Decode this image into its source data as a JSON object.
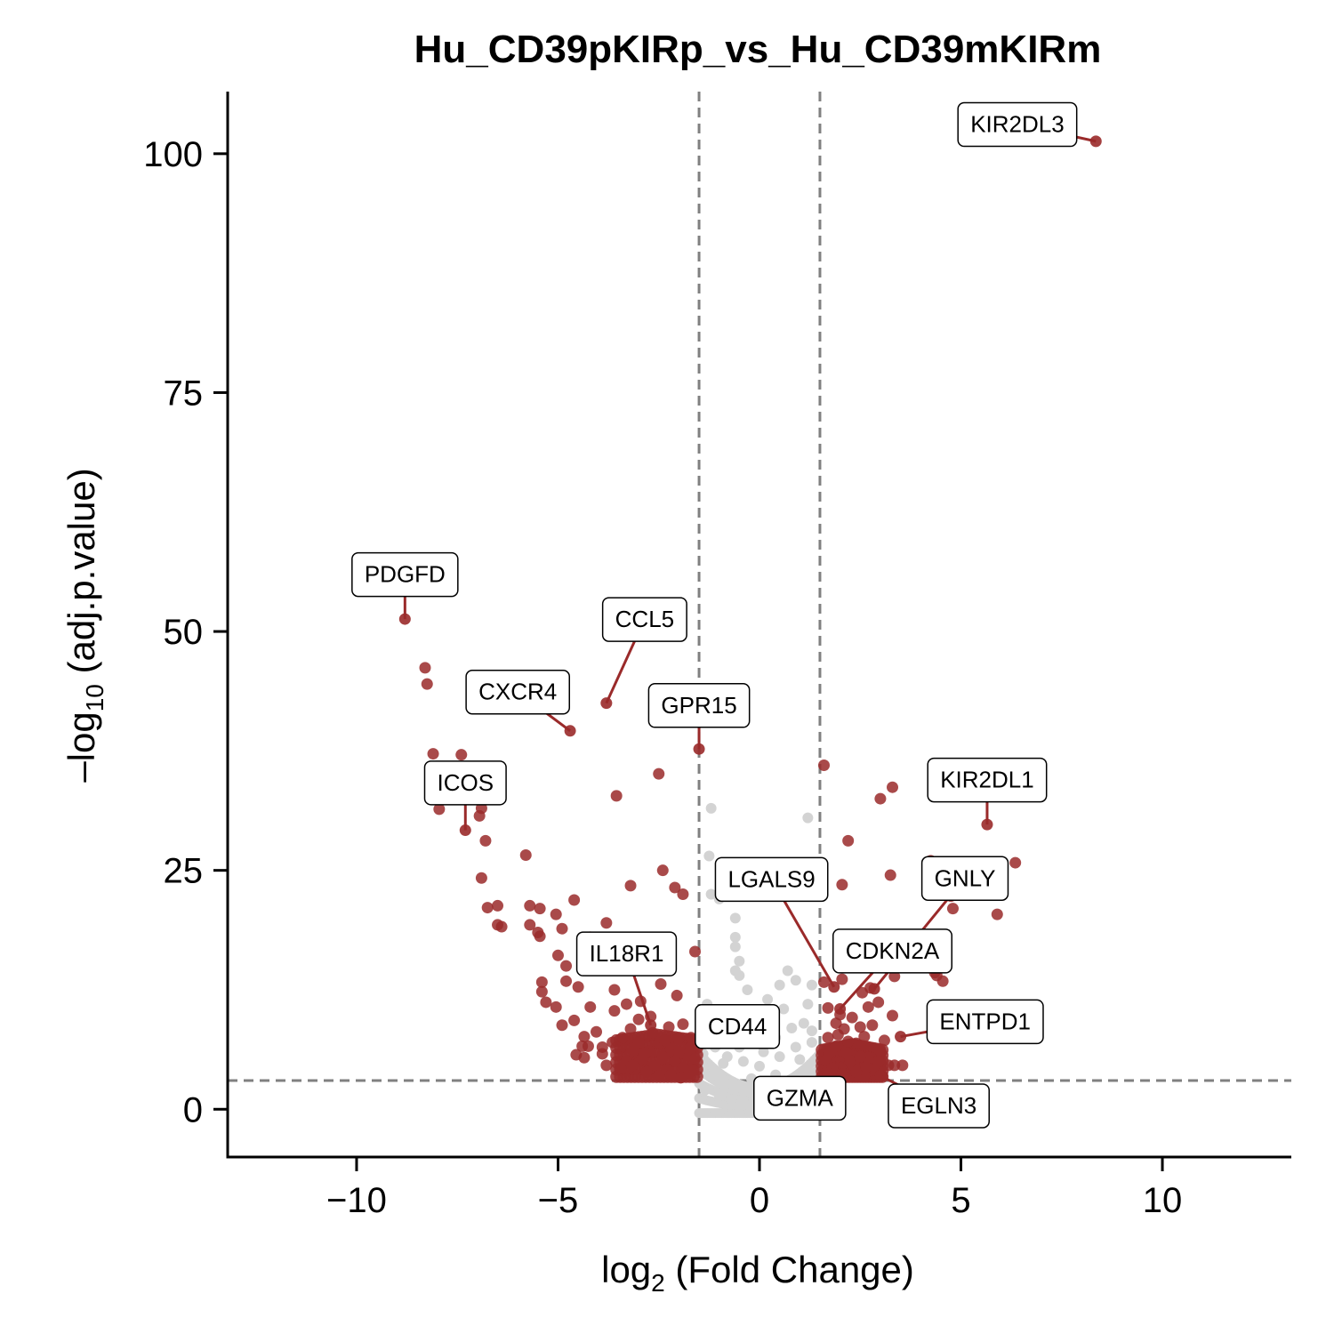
{
  "chart_data": {
    "type": "scatter",
    "title": "Hu_CD39pKIRp_vs_Hu_CD39mKIRm",
    "xlabel": {
      "base": "log",
      "sub": "2",
      "rest": " (Fold Change)"
    },
    "ylabel": {
      "base": "–log",
      "sub": "10",
      "rest": " (adj.p.value)"
    },
    "xlim": [
      -13.2,
      13.2
    ],
    "ylim": [
      -5,
      106.5
    ],
    "xticks": [
      -10,
      -5,
      0,
      5,
      10
    ],
    "xtick_labels": [
      "−10",
      "−5",
      "0",
      "5",
      "10"
    ],
    "yticks": [
      0,
      25,
      50,
      75,
      100
    ],
    "ytick_labels": [
      "0",
      "25",
      "50",
      "75",
      "100"
    ],
    "thresholds": {
      "fc": [
        -1.5,
        1.5
      ],
      "padj": 3
    },
    "grid": false,
    "legend": "none",
    "colors": {
      "significant": "#9A2A2A",
      "nonsignificant": "#D3D3D3",
      "threshold_line": "#808080"
    },
    "labeled_genes": [
      {
        "gene": "KIR2DL3",
        "x": 8.35,
        "y": 101.3,
        "lx": 6.4,
        "ly": 103.1
      },
      {
        "gene": "PDGFD",
        "x": -8.8,
        "y": 51.3,
        "lx": -8.8,
        "ly": 56.0
      },
      {
        "gene": "CCL5",
        "x": -3.8,
        "y": 42.5,
        "lx": -2.85,
        "ly": 51.3
      },
      {
        "gene": "CXCR4",
        "x": -4.7,
        "y": 39.6,
        "lx": -6.0,
        "ly": 43.7
      },
      {
        "gene": "GPR15",
        "x": -1.5,
        "y": 37.7,
        "lx": -1.5,
        "ly": 42.3
      },
      {
        "gene": "ICOS",
        "x": -7.3,
        "y": 29.2,
        "lx": -7.3,
        "ly": 34.2
      },
      {
        "gene": "KIR2DL1",
        "x": 5.65,
        "y": 29.8,
        "lx": 5.65,
        "ly": 34.5
      },
      {
        "gene": "LGALS9",
        "x": 1.85,
        "y": 12.8,
        "lx": 0.3,
        "ly": 24.1
      },
      {
        "gene": "GNLY",
        "x": 2.85,
        "y": 12.6,
        "lx": 5.1,
        "ly": 24.2
      },
      {
        "gene": "CDKN2A",
        "x": 2.0,
        "y": 10.5,
        "lx": 3.3,
        "ly": 16.6
      },
      {
        "gene": "IL18R1",
        "x": -2.7,
        "y": 8.8,
        "lx": -3.3,
        "ly": 16.3
      },
      {
        "gene": "ENTPD1",
        "x": 3.5,
        "y": 7.6,
        "lx": 5.6,
        "ly": 9.2
      },
      {
        "gene": "CD44",
        "x": -1.6,
        "y": 7.1,
        "lx": -0.55,
        "ly": 8.7
      },
      {
        "gene": "GZMA",
        "x": 1.7,
        "y": 3.5,
        "lx": 1.0,
        "ly": 1.2
      },
      {
        "gene": "EGLN3",
        "x": 3.0,
        "y": 3.5,
        "lx": 4.45,
        "ly": 0.4
      }
    ],
    "significant_points": [
      [
        -8.3,
        46.2
      ],
      [
        -8.25,
        44.5
      ],
      [
        -8.1,
        37.2
      ],
      [
        -7.4,
        37.1
      ],
      [
        -7.55,
        34.4
      ],
      [
        -7.95,
        31.4
      ],
      [
        -6.9,
        31.5
      ],
      [
        -6.95,
        30.7
      ],
      [
        -6.8,
        28.1
      ],
      [
        -5.8,
        26.6
      ],
      [
        -6.9,
        24.2
      ],
      [
        -6.75,
        21.1
      ],
      [
        -6.5,
        21.3
      ],
      [
        -6.5,
        19.3
      ],
      [
        -6.4,
        19.1
      ],
      [
        -5.7,
        21.3
      ],
      [
        -5.45,
        21.0
      ],
      [
        -5.05,
        20.4
      ],
      [
        -5.7,
        19.3
      ],
      [
        -4.9,
        18.9
      ],
      [
        -5.5,
        18.5
      ],
      [
        -5.45,
        18.1
      ],
      [
        -4.6,
        21.9
      ],
      [
        -5.0,
        16.1
      ],
      [
        -4.8,
        15.0
      ],
      [
        -4.2,
        18.0
      ],
      [
        -3.8,
        19.5
      ],
      [
        -4.1,
        17.0
      ],
      [
        -3.45,
        15.3
      ],
      [
        -3.6,
        10.3
      ],
      [
        -5.4,
        13.3
      ],
      [
        -5.4,
        12.3
      ],
      [
        -4.8,
        13.4
      ],
      [
        -3.2,
        23.4
      ],
      [
        -2.5,
        35.1
      ],
      [
        -3.55,
        32.8
      ],
      [
        -2.4,
        25.0
      ],
      [
        -1.9,
        22.5
      ],
      [
        -2.1,
        23.2
      ],
      [
        -1.6,
        16.5
      ],
      [
        -4.5,
        12.8
      ],
      [
        -4.2,
        10.7
      ],
      [
        -4.6,
        9.3
      ],
      [
        -4.35,
        7.6
      ],
      [
        -4.25,
        6.6
      ],
      [
        -4.35,
        5.4
      ],
      [
        -4.55,
        5.7
      ],
      [
        -4.4,
        6.6
      ],
      [
        -5.3,
        11.2
      ],
      [
        -5.05,
        10.7
      ],
      [
        -4.9,
        8.8
      ],
      [
        -4.05,
        8.1
      ],
      [
        -3.9,
        5.8
      ],
      [
        -3.8,
        4.6
      ],
      [
        -3.65,
        7.0
      ],
      [
        -3.4,
        7.5
      ],
      [
        -3.3,
        5.0
      ],
      [
        -3.1,
        6.2
      ],
      [
        -3.2,
        8.4
      ],
      [
        -3.0,
        7.0
      ],
      [
        -2.9,
        5.3
      ],
      [
        -2.75,
        6.1
      ],
      [
        -2.6,
        4.5
      ],
      [
        -2.5,
        6.9
      ],
      [
        -2.4,
        5.5
      ],
      [
        -2.3,
        4.1
      ],
      [
        -2.2,
        6.3
      ],
      [
        -2.1,
        5.0
      ],
      [
        -2.0,
        7.4
      ],
      [
        -1.9,
        4.3
      ],
      [
        -1.8,
        5.7
      ],
      [
        -1.7,
        6.5
      ],
      [
        -1.65,
        4.1
      ],
      [
        -1.6,
        5.3
      ],
      [
        -2.05,
        11.9
      ],
      [
        -2.45,
        13.1
      ],
      [
        -2.7,
        9.7
      ],
      [
        -2.95,
        11.3
      ],
      [
        -2.25,
        8.6
      ],
      [
        -1.9,
        8.9
      ],
      [
        -3.6,
        12.5
      ],
      [
        -3.3,
        11.0
      ],
      [
        -3.0,
        9.4
      ],
      [
        -2.8,
        3.9
      ],
      [
        -2.5,
        3.5
      ],
      [
        -2.2,
        3.6
      ],
      [
        -1.95,
        3.3
      ],
      [
        -1.75,
        3.8
      ],
      [
        -3.45,
        4.3
      ],
      [
        -3.9,
        6.5
      ],
      [
        -2.65,
        8.0
      ],
      [
        -2.35,
        7.2
      ],
      [
        -2.0,
        6.0
      ],
      [
        -1.7,
        7.5
      ],
      [
        -2.85,
        5.9
      ],
      [
        -3.15,
        4.6
      ],
      [
        1.6,
        36.0
      ],
      [
        2.2,
        28.1
      ],
      [
        3.3,
        33.7
      ],
      [
        3.0,
        32.5
      ],
      [
        2.05,
        23.5
      ],
      [
        3.25,
        24.5
      ],
      [
        4.25,
        26.0
      ],
      [
        4.75,
        22.3
      ],
      [
        4.8,
        21.0
      ],
      [
        5.9,
        20.4
      ],
      [
        6.35,
        25.8
      ],
      [
        3.35,
        13.9
      ],
      [
        4.4,
        14.0
      ],
      [
        4.55,
        13.4
      ],
      [
        4.35,
        14.3
      ],
      [
        2.75,
        12.7
      ],
      [
        2.55,
        12.2
      ],
      [
        2.7,
        10.7
      ],
      [
        2.95,
        11.2
      ],
      [
        1.6,
        13.3
      ],
      [
        2.05,
        13.6
      ],
      [
        3.3,
        9.8
      ],
      [
        1.7,
        10.6
      ],
      [
        2.0,
        9.9
      ],
      [
        1.9,
        9.0
      ],
      [
        2.1,
        8.4
      ],
      [
        2.3,
        9.6
      ],
      [
        2.5,
        8.6
      ],
      [
        2.6,
        7.6
      ],
      [
        2.8,
        8.8
      ],
      [
        1.7,
        7.5
      ],
      [
        1.9,
        6.6
      ],
      [
        2.15,
        5.9
      ],
      [
        2.4,
        6.9
      ],
      [
        2.7,
        5.4
      ],
      [
        3.0,
        6.1
      ],
      [
        3.2,
        4.6
      ],
      [
        3.1,
        7.2
      ],
      [
        2.85,
        4.1
      ],
      [
        1.65,
        5.1
      ],
      [
        1.8,
        4.3
      ],
      [
        2.05,
        3.6
      ],
      [
        2.35,
        4.6
      ],
      [
        2.6,
        3.5
      ],
      [
        1.7,
        3.8
      ],
      [
        3.35,
        4.6
      ],
      [
        3.55,
        4.6
      ],
      [
        1.95,
        7.8
      ],
      [
        2.25,
        5.0
      ],
      [
        2.5,
        5.5
      ],
      [
        2.95,
        5.0
      ],
      [
        1.75,
        5.9
      ],
      [
        2.4,
        3.9
      ],
      [
        3.05,
        3.5
      ],
      [
        2.2,
        7.1
      ],
      [
        2.65,
        4.4
      ]
    ],
    "nonsignificant_points": [
      [
        -1.2,
        31.5
      ],
      [
        1.2,
        30.5
      ],
      [
        -1.25,
        26.5
      ],
      [
        -1.2,
        22.5
      ],
      [
        -1.0,
        22.0
      ],
      [
        -0.6,
        20.0
      ],
      [
        -0.6,
        18.0
      ],
      [
        -0.6,
        17.0
      ],
      [
        -0.5,
        15.5
      ],
      [
        -0.6,
        14.5
      ],
      [
        -0.5,
        14.0
      ],
      [
        0.7,
        14.5
      ],
      [
        0.5,
        13.0
      ],
      [
        0.9,
        13.5
      ],
      [
        1.3,
        13.0
      ],
      [
        -0.3,
        12.5
      ],
      [
        0.2,
        11.5
      ],
      [
        1.2,
        11.0
      ],
      [
        -1.3,
        11.0
      ],
      [
        -1.0,
        10.0
      ],
      [
        -0.7,
        9.0
      ],
      [
        -0.3,
        8.0
      ],
      [
        0.4,
        7.5
      ],
      [
        0.8,
        8.5
      ],
      [
        1.1,
        9.0
      ],
      [
        -1.1,
        6.5
      ],
      [
        -0.8,
        5.5
      ],
      [
        -0.4,
        5.0
      ],
      [
        0.0,
        4.5
      ],
      [
        0.5,
        5.5
      ],
      [
        0.9,
        6.5
      ],
      [
        1.3,
        7.0
      ],
      [
        -1.4,
        4.5
      ],
      [
        -1.2,
        3.5
      ],
      [
        -0.9,
        3.0
      ],
      [
        -0.6,
        2.5
      ],
      [
        -0.3,
        2.0
      ],
      [
        0.0,
        1.5
      ],
      [
        0.3,
        2.2
      ],
      [
        0.6,
        2.8
      ],
      [
        0.9,
        3.4
      ],
      [
        1.2,
        4.0
      ],
      [
        1.4,
        3.0
      ],
      [
        -1.35,
        2.0
      ],
      [
        -1.0,
        1.5
      ],
      [
        -0.7,
        1.0
      ],
      [
        -0.4,
        0.8
      ],
      [
        -0.1,
        0.5
      ],
      [
        0.2,
        0.6
      ],
      [
        0.5,
        1.0
      ],
      [
        0.8,
        1.4
      ],
      [
        1.1,
        1.8
      ],
      [
        1.35,
        2.2
      ],
      [
        -0.2,
        3.2
      ],
      [
        0.4,
        3.6
      ],
      [
        -0.9,
        4.8
      ],
      [
        1.0,
        5.2
      ],
      [
        -1.4,
        5.8
      ],
      [
        1.4,
        5.0
      ],
      [
        -0.5,
        6.5
      ],
      [
        0.1,
        6.0
      ],
      [
        -1.3,
        8.0
      ],
      [
        1.3,
        8.2
      ],
      [
        -0.2,
        10.0
      ],
      [
        0.6,
        10.5
      ]
    ]
  }
}
